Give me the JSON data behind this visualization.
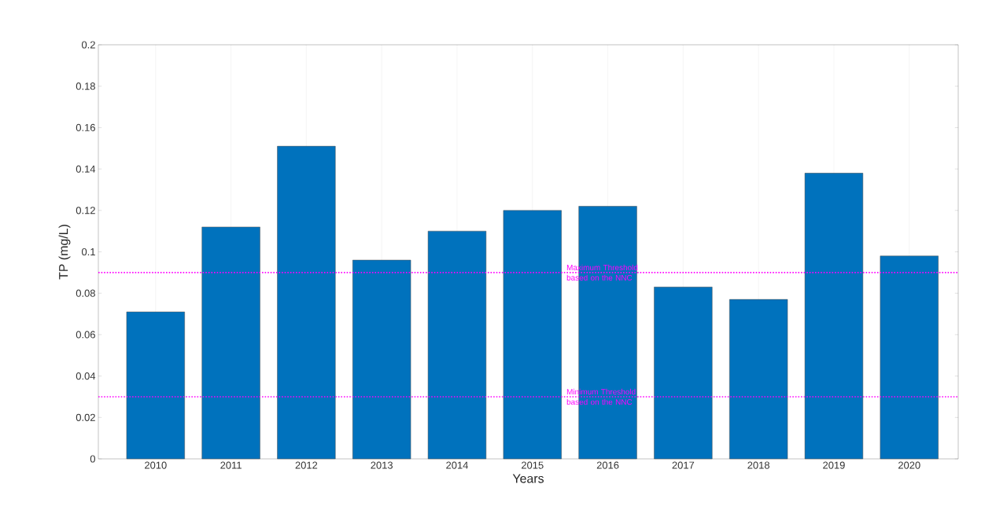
{
  "chart_data": {
    "type": "bar",
    "xlabel": "Years",
    "ylabel": "TP (mg/L)",
    "categories": [
      "2010",
      "2011",
      "2012",
      "2013",
      "2014",
      "2015",
      "2016",
      "2017",
      "2018",
      "2019",
      "2020"
    ],
    "values": [
      0.071,
      0.112,
      0.151,
      0.096,
      0.11,
      0.12,
      0.122,
      0.083,
      0.077,
      0.138,
      0.098
    ],
    "color": "#0072bd",
    "ylim": [
      0,
      0.2
    ],
    "yticks": [
      0,
      0.02,
      0.04,
      0.06,
      0.08,
      0.1,
      0.12,
      0.14,
      0.16,
      0.18,
      0.2
    ],
    "grid": "x",
    "ref_lines": [
      {
        "axis": "y",
        "value": 0.09,
        "label": "Maximum Threshold based on the NNC",
        "color": "#ff00ff",
        "line_style": "dotted"
      },
      {
        "axis": "y",
        "value": 0.03,
        "label": "Minimum Threshold based on the NNC",
        "color": "#ff00ff",
        "line_style": "dotted"
      }
    ]
  }
}
